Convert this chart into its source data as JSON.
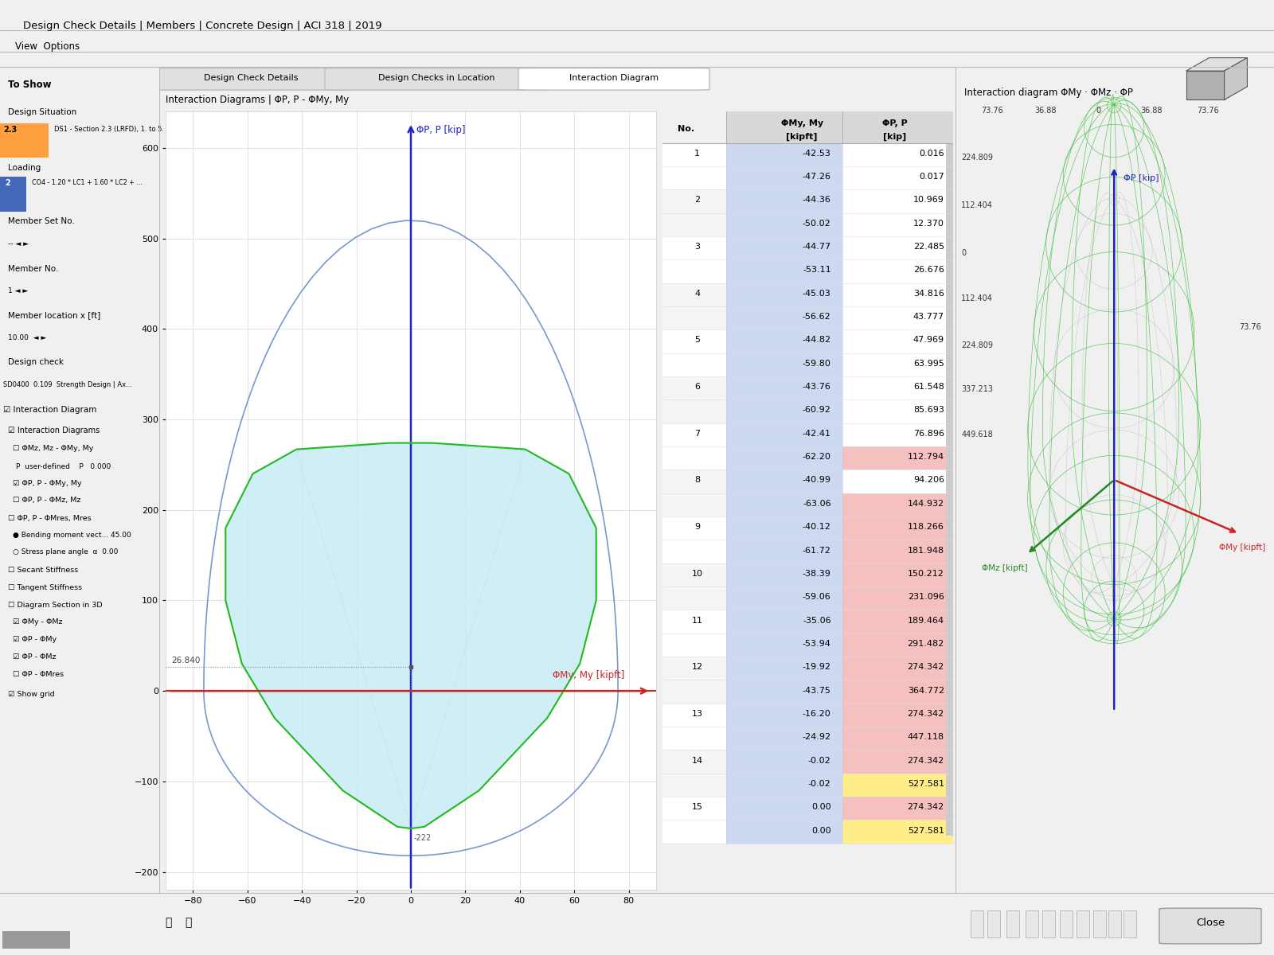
{
  "title_bar": "Design Check Details | Members | Concrete Design | ACI 318 | 2019",
  "tab1": "Design Check Details",
  "tab2": "Design Checks in Location",
  "tab3": "Interaction Diagram",
  "diagram_title": "Interaction Diagrams | ΦP, P - ΦMy, My",
  "left_panel_title": "To Show",
  "axis_label_x": "ΦMy, My [kipft]",
  "axis_label_y": "ΦP, P [kip]",
  "x_ticks": [
    -80,
    -60,
    -40,
    -20,
    0,
    20,
    40,
    60,
    80
  ],
  "y_ticks": [
    -200,
    -100,
    0,
    100,
    200,
    300,
    400,
    500,
    600
  ],
  "xlim": [
    -90,
    90
  ],
  "ylim": [
    -220,
    640
  ],
  "point_label": "26.840",
  "bg_color": "#f0f0f0",
  "plot_bg": "#ffffff",
  "green_color": "#22bb22",
  "blue_color": "#2222cc",
  "light_blue_fill": "#cceeff",
  "outer_blue_color": "#88aadd",
  "red_line_color": "#cc2222",
  "table_col_headers": [
    "No.",
    "ΦMy, My\n[kipft]",
    "ΦP, P\n[kip]"
  ],
  "table_rows": [
    [
      1,
      -42.53,
      0.016,
      -47.26,
      0.017
    ],
    [
      2,
      -44.36,
      10.969,
      -50.02,
      12.37
    ],
    [
      3,
      -44.77,
      22.485,
      -53.11,
      26.676
    ],
    [
      4,
      -45.03,
      34.816,
      -56.62,
      43.777
    ],
    [
      5,
      -44.82,
      47.969,
      -59.8,
      63.995
    ],
    [
      6,
      -43.76,
      61.548,
      -60.92,
      85.693
    ],
    [
      7,
      -42.41,
      76.896,
      -62.2,
      112.794
    ],
    [
      8,
      -40.99,
      94.206,
      -63.06,
      144.932
    ],
    [
      9,
      -40.12,
      118.266,
      -61.72,
      181.948
    ],
    [
      10,
      -38.39,
      150.212,
      -59.06,
      231.096
    ],
    [
      11,
      -35.06,
      189.464,
      -53.94,
      291.482
    ],
    [
      12,
      -19.92,
      274.342,
      -43.75,
      364.772
    ],
    [
      13,
      -16.2,
      274.342,
      -24.92,
      447.118
    ],
    [
      14,
      -0.02,
      274.342,
      -0.02,
      527.581
    ],
    [
      15,
      0.0,
      274.342,
      0.0,
      527.581
    ]
  ],
  "right_panel_title": "Interaction diagram ΦMy · ΦMz · ΦP",
  "right_top_labels": [
    "73.76",
    "36.88",
    "0",
    "36.88",
    "73.76"
  ],
  "right_right_label": "73.76",
  "right_left_labels": [
    "449.618",
    "337.213",
    "224.809",
    "112.404",
    "0",
    "112.404",
    "224.809"
  ],
  "left_sidebar_items": [
    "To Show",
    "Design Situation",
    "2.3  DS1 - Section 2.3 (LRFD), 1. to 5.",
    "Loading",
    "2  CO4 - 1.20 * LC1 + 1.60 * LC2 + ...",
    "Member Set No.",
    "",
    "Member No.",
    "1",
    "Member location x [ft]",
    "10.00",
    "Design check",
    "SD0400  0.109  Strength Design | Ax..."
  ]
}
